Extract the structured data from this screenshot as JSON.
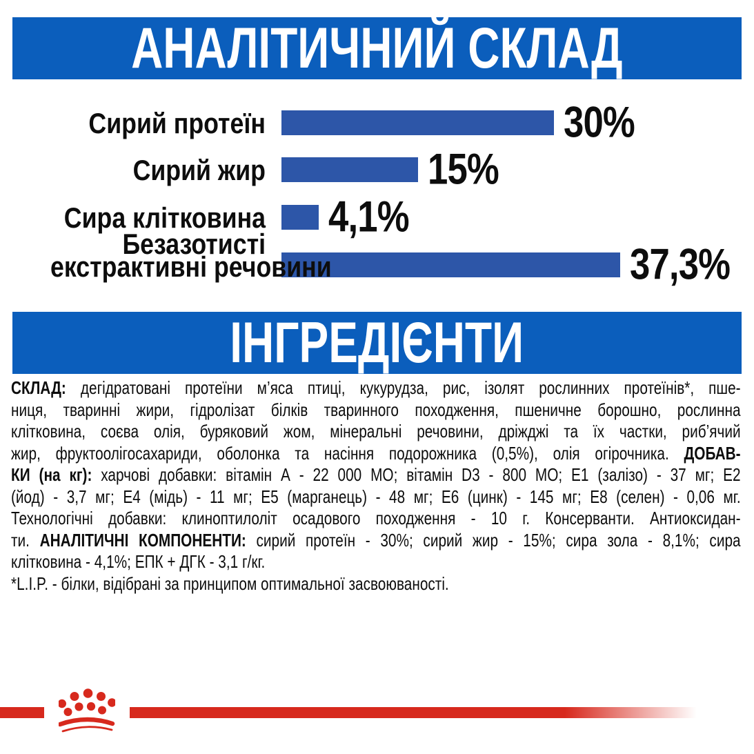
{
  "banners": {
    "analytical": "АНАЛІТИЧНИЙ СКЛАД",
    "ingredients": "ІНГРЕДІЄНТИ"
  },
  "chart_data": {
    "type": "bar",
    "orientation": "horizontal",
    "title": "АНАЛІТИЧНИЙ СКЛАД",
    "categories": [
      "Сирий протеїн",
      "Сирий жир",
      "Сира клітковина",
      "Безазотисті екстрактивні речовини"
    ],
    "values": [
      30,
      15,
      4.1,
      37.3
    ],
    "value_labels": [
      "30%",
      "15%",
      "4,1%",
      "37,3%"
    ],
    "unit": "%",
    "xlim": [
      0,
      40
    ],
    "grid": false,
    "legend": false,
    "bar_color": "#2d56a8",
    "rows": [
      {
        "label_line1": "Сирий протеїн",
        "label_line2": "",
        "value": 30,
        "display": "30%"
      },
      {
        "label_line1": "Сирий жир",
        "label_line2": "",
        "value": 15,
        "display": "15%"
      },
      {
        "label_line1": "Сира клітковина",
        "label_line2": "",
        "value": 4.1,
        "display": "4,1%"
      },
      {
        "label_line1": "Безазотисті",
        "label_line2": "екстрактивні речовини",
        "value": 37.3,
        "display": "37,3%"
      }
    ]
  },
  "ingredients": {
    "lines": [
      [
        {
          "b": true,
          "t": "СКЛАД:"
        },
        {
          "t": " дегідратовані протеїни м’яса птиці, кукурудза, рис, ізолят рослинних протеїнів*, пше-"
        }
      ],
      [
        {
          "t": "ниця, тваринні жири, гідролізат білків тваринного походження, пшеничне борошно, рослинна"
        }
      ],
      [
        {
          "t": "клітковина, соєва олія, буряковий жом, мінеральні речовини, дріжджі та їх частки, риб’ячий"
        }
      ],
      [
        {
          "t": "жир, фруктоолігосахариди, оболонка та насіння подорожника (0,5%), олія огірочника. "
        },
        {
          "b": true,
          "t": "ДОБАВ-"
        }
      ],
      [
        {
          "b": true,
          "t": "КИ (на кг):"
        },
        {
          "t": " харчові добавки: вітамін А - 22 000 МО; вітамін D3 - 800 МО; Е1 (залізо) - 37 мг; Е2"
        }
      ],
      [
        {
          "t": "(йод) - 3,7 мг; Е4 (мідь) - 11 мг; Е5 (марганець) - 48 мг; Е6 (цинк) - 145 мг; Е8 (селен) - 0,06 мг."
        }
      ],
      [
        {
          "t": "Технологічні добавки: клиноптилоліт осадового походження - 10 г. Консерванти. Антиоксидан-"
        }
      ],
      [
        {
          "t": "ти. "
        },
        {
          "b": true,
          "t": "АНАЛІТИЧНІ КОМПОНЕНТИ:"
        },
        {
          "t": " сирий протеїн - 30%; сирий жир - 15%; сира зола - 8,1%; сира"
        }
      ],
      [
        {
          "t": "клітковина - 4,1%; ЕПК + ДГК - 3,1 г/кг."
        }
      ],
      [
        {
          "t": "*L.I.P. - білки, відібрані за принципом оптимальної засвоюваності."
        }
      ]
    ]
  },
  "colors": {
    "banner_blue": "#0b5ebc",
    "bar_blue": "#2d56a8",
    "brand_red": "#d7291d",
    "text": "#0d0d0d"
  }
}
